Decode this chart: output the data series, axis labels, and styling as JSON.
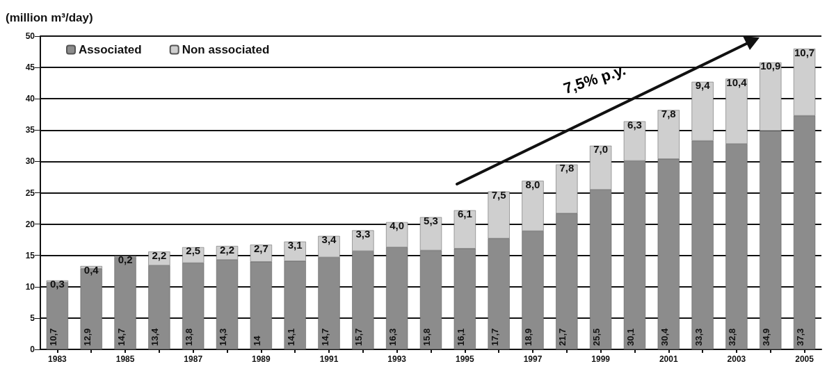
{
  "chart_data": {
    "type": "bar",
    "stacked": true,
    "ylabel": "(million m³/day)",
    "categories": [
      "1983",
      null,
      "1985",
      null,
      "1987",
      null,
      "1989",
      null,
      "1991",
      null,
      "1993",
      null,
      "1995",
      null,
      "1997",
      null,
      "1999",
      null,
      "2001",
      null,
      "2003",
      null,
      "2005"
    ],
    "series": [
      {
        "name": "Associated",
        "color": "#8c8c8c",
        "values": [
          10.7,
          12.9,
          14.7,
          13.4,
          13.8,
          14.3,
          14,
          14.1,
          14.7,
          15.7,
          16.3,
          15.8,
          16.1,
          17.7,
          18.9,
          21.7,
          25.5,
          30.1,
          30.4,
          33.3,
          32.8,
          34.9,
          37.3
        ],
        "value_labels": [
          "10,7",
          "12,9",
          "14,7",
          "13,4",
          "13,8",
          "14,3",
          "14",
          "14,1",
          "14,7",
          "15,7",
          "16,3",
          "15,8",
          "16,1",
          "17,7",
          "18,9",
          "21,7",
          "25,5",
          "30,1",
          "30,4",
          "33,3",
          "32,8",
          "34,9",
          "37,3"
        ]
      },
      {
        "name": "Non associated",
        "color": "#cfcfcf",
        "values": [
          0.3,
          0.4,
          0.2,
          2.2,
          2.5,
          2.2,
          2.7,
          3.1,
          3.4,
          3.3,
          4.0,
          5.3,
          6.1,
          7.5,
          8.0,
          7.8,
          7.0,
          6.3,
          7.8,
          9.4,
          10.4,
          10.9,
          10.7
        ],
        "value_labels": [
          "0,3",
          "0,4",
          "0,2",
          "2,2",
          "2,5",
          "2,2",
          "2,7",
          "3,1",
          "3,4",
          "3,3",
          "4,0",
          "5,3",
          "6,1",
          "7,5",
          "8,0",
          "7,8",
          "7,0",
          "6,3",
          "7,8",
          "9,4",
          "10,4",
          "10,9",
          "10,7"
        ]
      }
    ],
    "ylim": [
      0,
      50
    ],
    "yticks": [
      0,
      5,
      10,
      15,
      20,
      25,
      30,
      35,
      40,
      45,
      50
    ],
    "grid": "y",
    "legend": "top left",
    "annotations": [
      "7,5% p.y."
    ]
  }
}
